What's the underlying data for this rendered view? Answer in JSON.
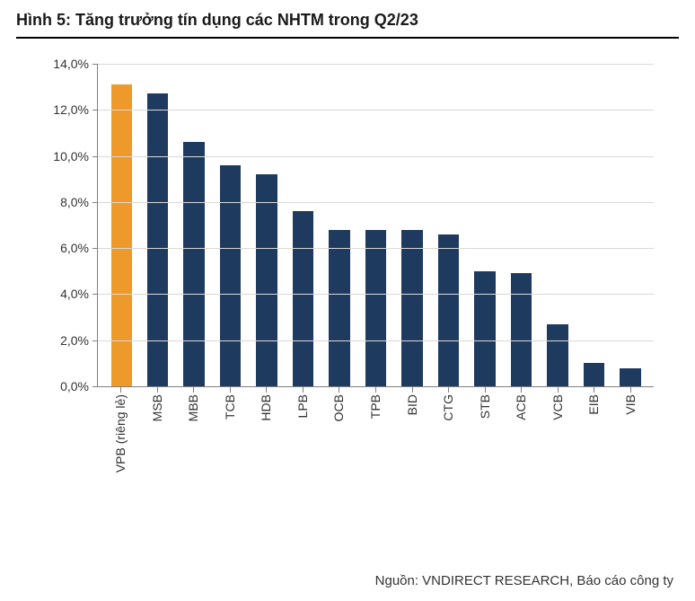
{
  "title": "Hình 5: Tăng trưởng tín dụng các NHTM trong Q2/23",
  "source": "Nguồn: VNDIRECT RESEARCH, Báo cáo công ty",
  "chart": {
    "type": "bar",
    "background_color": "#ffffff",
    "grid_color": "#d9d9d9",
    "axis_color": "#808080",
    "label_color": "#333333",
    "label_fontsize": 14,
    "title_fontsize": 18,
    "bar_width": 0.58,
    "ylim": [
      0,
      14
    ],
    "ytick_step": 2,
    "y_format": "percent_comma_1",
    "y_ticks": [
      {
        "v": 0,
        "label": "0,0%"
      },
      {
        "v": 2,
        "label": "2,0%"
      },
      {
        "v": 4,
        "label": "4,0%"
      },
      {
        "v": 6,
        "label": "6,0%"
      },
      {
        "v": 8,
        "label": "8,0%"
      },
      {
        "v": 10,
        "label": "10,0%"
      },
      {
        "v": 12,
        "label": "12,0%"
      },
      {
        "v": 14,
        "label": "14,0%"
      }
    ],
    "x_label_rotation": -90,
    "series": [
      {
        "category": "VPB (riêng lẻ)",
        "value": 13.1,
        "color": "#ed9a2b"
      },
      {
        "category": "MSB",
        "value": 12.7,
        "color": "#1f3a5f"
      },
      {
        "category": "MBB",
        "value": 10.6,
        "color": "#1f3a5f"
      },
      {
        "category": "TCB",
        "value": 9.6,
        "color": "#1f3a5f"
      },
      {
        "category": "HDB",
        "value": 9.2,
        "color": "#1f3a5f"
      },
      {
        "category": "LPB",
        "value": 7.6,
        "color": "#1f3a5f"
      },
      {
        "category": "OCB",
        "value": 6.8,
        "color": "#1f3a5f"
      },
      {
        "category": "TPB",
        "value": 6.8,
        "color": "#1f3a5f"
      },
      {
        "category": "BID",
        "value": 6.8,
        "color": "#1f3a5f"
      },
      {
        "category": "CTG",
        "value": 6.6,
        "color": "#1f3a5f"
      },
      {
        "category": "STB",
        "value": 5.0,
        "color": "#1f3a5f"
      },
      {
        "category": "ACB",
        "value": 4.9,
        "color": "#1f3a5f"
      },
      {
        "category": "VCB",
        "value": 2.7,
        "color": "#1f3a5f"
      },
      {
        "category": "EIB",
        "value": 1.0,
        "color": "#1f3a5f"
      },
      {
        "category": "VIB",
        "value": 0.8,
        "color": "#1f3a5f"
      }
    ]
  }
}
